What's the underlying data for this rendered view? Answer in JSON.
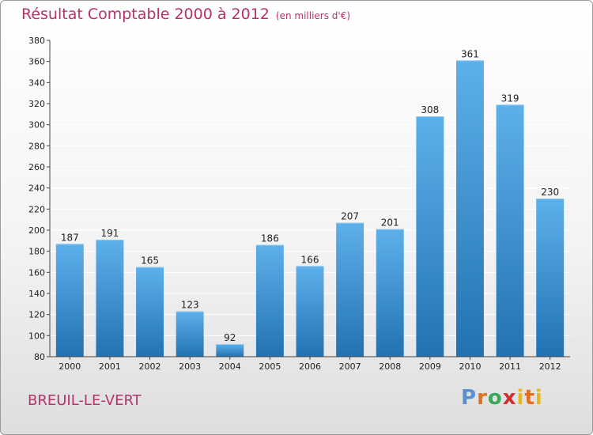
{
  "title": "Résultat Comptable 2000 à 2012",
  "subtitle": "(en milliers d'€)",
  "place": "BREUIL-LE-VERT",
  "logo": {
    "text": "Proxiti"
  },
  "colors": {
    "title": "#b5336a",
    "bar_top": "#5eb0ea",
    "bar_bottom": "#2272b2",
    "axis": "#222222",
    "grid": "#ffffff"
  },
  "chart_data": {
    "type": "bar",
    "title": "Résultat Comptable 2000 à 2012",
    "subtitle": "(en milliers d'€)",
    "categories": [
      "2000",
      "2001",
      "2002",
      "2003",
      "2004",
      "2005",
      "2006",
      "2007",
      "2008",
      "2009",
      "2010",
      "2011",
      "2012"
    ],
    "values": [
      187,
      191,
      165,
      123,
      92,
      186,
      166,
      207,
      201,
      308,
      361,
      319,
      230
    ],
    "ylim": [
      80,
      380
    ],
    "yticks": [
      80,
      100,
      120,
      140,
      160,
      180,
      200,
      220,
      240,
      260,
      280,
      300,
      320,
      340,
      360,
      380
    ],
    "grid": true,
    "data_labels": true
  }
}
